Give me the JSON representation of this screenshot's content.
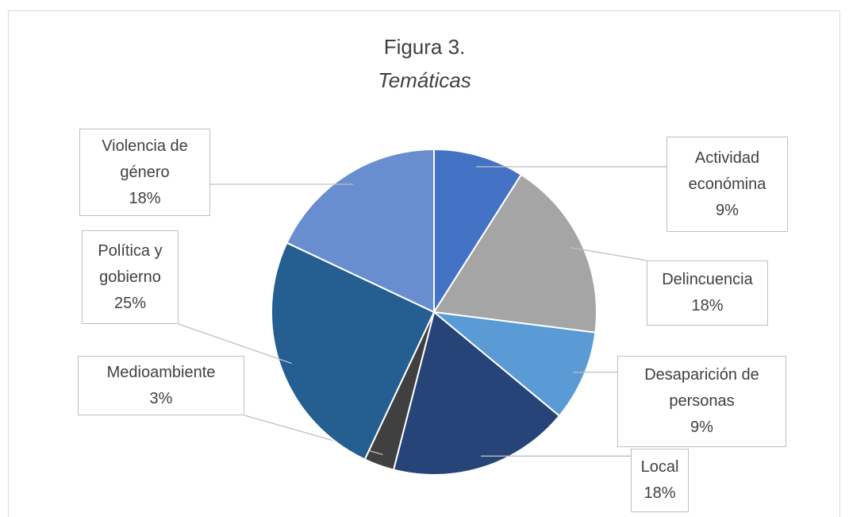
{
  "chart_data": {
    "type": "pie",
    "title": "Figura 3.",
    "subtitle": "Temáticas",
    "categories": [
      "Actividad económina",
      "Delincuencia",
      "Desaparición de personas",
      "Local",
      "Medioambiente",
      "Política y gobierno",
      "Violencia de género"
    ],
    "values": [
      9,
      18,
      9,
      18,
      3,
      25,
      18
    ],
    "value_labels": [
      "9%",
      "18%",
      "9%",
      "18%",
      "3%",
      "25%",
      "18%"
    ],
    "colors": [
      "#4472c4",
      "#a5a5a5",
      "#5b9bd5",
      "#264478",
      "#404040",
      "#255e91",
      "#698ed0"
    ]
  }
}
